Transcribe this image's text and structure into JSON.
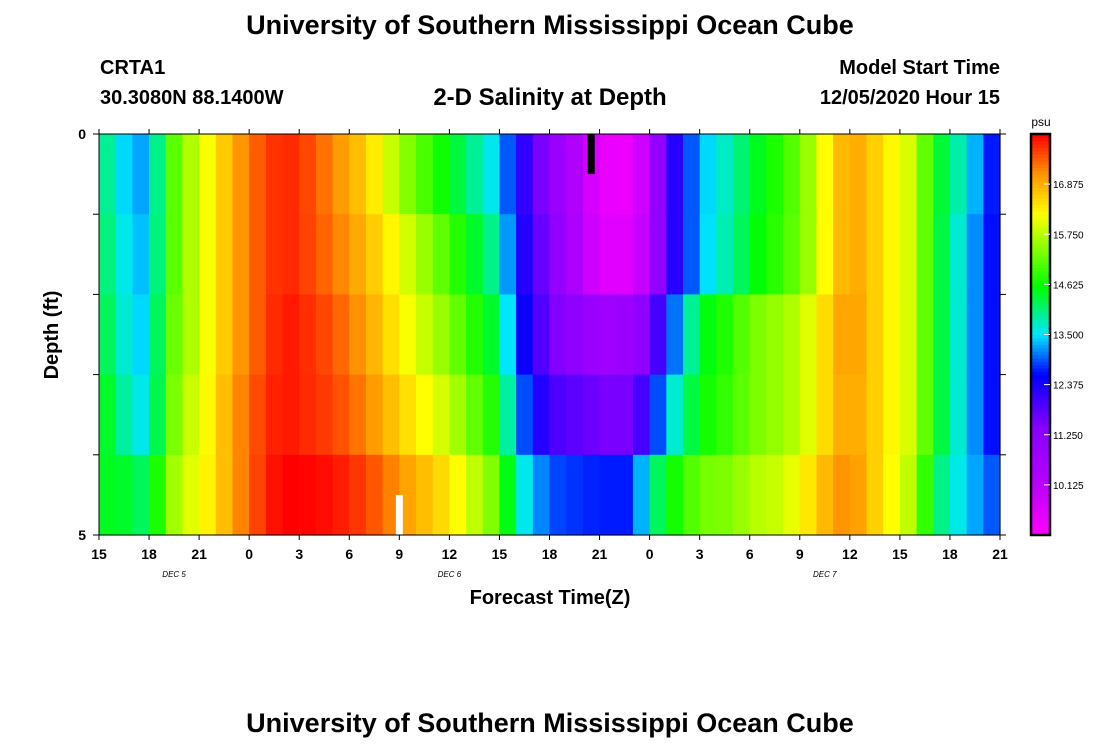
{
  "header": {
    "title": "University of Southern Mississippi Ocean Cube",
    "station_id": "CRTA1",
    "coords": "30.3080N 88.1400W",
    "plot_title": "2-D Salinity at Depth",
    "start_label": "Model Start Time",
    "start_value": "12/05/2020 Hour 15"
  },
  "footer": {
    "title": "University of Southern Mississippi Ocean Cube"
  },
  "chart_data": {
    "type": "heatmap",
    "title": "2-D Salinity at Depth",
    "xlabel": "Forecast Time(Z)",
    "ylabel": "Depth (ft)",
    "x_hours": [
      15,
      18,
      21,
      0,
      3,
      6,
      9,
      12,
      15,
      18,
      21,
      0,
      3,
      6,
      9,
      12,
      15,
      18,
      21
    ],
    "x_tick_labels": [
      "15",
      "18",
      "21",
      "0",
      "3",
      "6",
      "9",
      "12",
      "15",
      "18",
      "21",
      "0",
      "3",
      "6",
      "9",
      "12",
      "15",
      "18",
      "21"
    ],
    "date_labels": [
      {
        "label": "DEC 5",
        "hour_index": 1.5
      },
      {
        "label": "DEC 6",
        "hour_index": 7
      },
      {
        "label": "DEC 7",
        "hour_index": 14.5
      }
    ],
    "y_tick_labels": [
      {
        "depth": 0,
        "label": "0"
      },
      {
        "depth": 5,
        "label": "5"
      }
    ],
    "ylim": [
      0,
      5
    ],
    "n_depth_layers": 5,
    "colorbar": {
      "unit": "psu",
      "min": 9.0,
      "max": 18.0,
      "tick_values": [
        10.125,
        11.25,
        12.375,
        13.5,
        14.625,
        15.75,
        16.875
      ],
      "tick_labels": [
        "10.125",
        "11.250",
        "12.375",
        "13.500",
        "14.625",
        "15.750",
        "16.875"
      ]
    },
    "anchor_times": [
      0,
      1,
      2,
      3,
      4,
      5,
      6,
      7,
      8,
      9,
      10,
      11,
      12,
      14,
      16,
      18,
      21,
      24,
      25,
      27,
      30,
      31,
      32,
      33,
      34,
      36,
      38,
      39,
      41,
      42,
      43,
      44,
      45,
      46,
      47,
      49,
      50,
      52,
      54
    ],
    "layers": [
      {
        "depth_range": [
          0,
          1
        ],
        "anchors": [
          14.3,
          13.6,
          13.3,
          13.2,
          14.8,
          15.5,
          15.9,
          16.4,
          16.9,
          17.3,
          17.6,
          17.8,
          17.7,
          17.2,
          16.6,
          15.6,
          14.5,
          13.4,
          12.5,
          11.2,
          9.4,
          9.3,
          9.3,
          10.3,
          11.9,
          13.3,
          13.9,
          14.3,
          14.9,
          15.3,
          15.8,
          16.6,
          17.0,
          16.8,
          16.4,
          15.8,
          14.6,
          13.6,
          12.4
        ]
      },
      {
        "depth_range": [
          1,
          2
        ],
        "anchors": [
          14.3,
          13.8,
          13.4,
          13.3,
          14.8,
          15.5,
          15.9,
          16.4,
          16.9,
          17.3,
          17.6,
          17.8,
          17.7,
          17.3,
          16.8,
          16.1,
          15.0,
          13.8,
          12.6,
          11.4,
          9.5,
          9.5,
          9.5,
          10.4,
          11.9,
          13.3,
          14.0,
          14.4,
          15.0,
          15.3,
          15.8,
          16.6,
          17.0,
          16.8,
          16.4,
          15.8,
          14.6,
          13.4,
          12.4
        ]
      },
      {
        "depth_range": [
          2,
          3
        ],
        "anchors": [
          14.5,
          13.9,
          13.5,
          13.4,
          15.0,
          15.5,
          15.9,
          16.4,
          16.9,
          17.3,
          17.6,
          17.9,
          17.8,
          17.5,
          17.0,
          16.3,
          15.4,
          14.2,
          12.8,
          11.6,
          10.8,
          10.8,
          11.0,
          11.4,
          12.6,
          14.4,
          14.9,
          15.3,
          15.6,
          15.8,
          16.2,
          16.8,
          17.1,
          16.8,
          16.4,
          15.8,
          14.6,
          13.4,
          12.4
        ]
      },
      {
        "depth_range": [
          3,
          4
        ],
        "anchors": [
          14.7,
          14.1,
          13.7,
          13.5,
          15.0,
          15.7,
          16.0,
          16.5,
          17.0,
          17.4,
          17.7,
          17.9,
          17.8,
          17.6,
          17.2,
          16.6,
          15.8,
          14.6,
          13.2,
          12.0,
          11.6,
          11.5,
          11.6,
          12.4,
          13.4,
          14.6,
          15.0,
          15.3,
          15.6,
          15.8,
          16.2,
          16.8,
          17.0,
          16.8,
          16.4,
          15.8,
          14.6,
          13.4,
          12.4
        ]
      },
      {
        "depth_range": [
          4,
          5
        ],
        "anchors": [
          14.3,
          14.6,
          14.2,
          14.2,
          15.3,
          15.9,
          16.1,
          16.5,
          17.0,
          17.4,
          17.8,
          18.0,
          18.0,
          17.9,
          17.6,
          17.1,
          16.4,
          15.2,
          13.8,
          12.9,
          12.7,
          12.7,
          12.7,
          13.9,
          14.5,
          15.3,
          15.4,
          15.7,
          15.9,
          16.2,
          16.6,
          17.0,
          17.2,
          16.8,
          16.4,
          15.6,
          14.2,
          13.4,
          12.8
        ]
      }
    ],
    "markers": [
      {
        "color": "#000000",
        "hour_offset": 29.5,
        "depth_range": [
          0,
          0.5
        ]
      },
      {
        "color": "#ffffff",
        "hour_offset": 18.0,
        "depth_range": [
          4.5,
          5
        ]
      }
    ]
  }
}
